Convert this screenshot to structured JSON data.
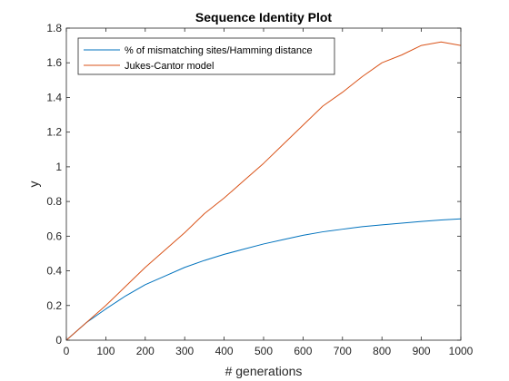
{
  "chart_data": {
    "type": "line",
    "title": "Sequence Identity Plot",
    "xlabel": "# generations",
    "ylabel": "y",
    "xlim": [
      0,
      1000
    ],
    "ylim": [
      0,
      1.8
    ],
    "xticks": [
      "0",
      "100",
      "200",
      "300",
      "400",
      "500",
      "600",
      "700",
      "800",
      "900",
      "1000"
    ],
    "yticks": [
      "0",
      "0.2",
      "0.4",
      "0.6",
      "0.8",
      "1",
      "1.2",
      "1.4",
      "1.6",
      "1.8"
    ],
    "grid": false,
    "legend_position": "top-left",
    "x": [
      0,
      50,
      100,
      150,
      200,
      250,
      300,
      350,
      400,
      450,
      500,
      550,
      600,
      650,
      700,
      750,
      800,
      850,
      900,
      950,
      1000
    ],
    "series": [
      {
        "name": "% of mismatching sites/Hamming distance",
        "color": "#0072BD",
        "values": [
          0,
          0.1,
          0.18,
          0.255,
          0.32,
          0.37,
          0.42,
          0.46,
          0.495,
          0.525,
          0.555,
          0.58,
          0.605,
          0.625,
          0.64,
          0.655,
          0.665,
          0.675,
          0.685,
          0.693,
          0.7
        ]
      },
      {
        "name": "Jukes-Cantor model",
        "color": "#D95319",
        "values": [
          0,
          0.1,
          0.2,
          0.31,
          0.42,
          0.52,
          0.62,
          0.73,
          0.82,
          0.92,
          1.02,
          1.13,
          1.24,
          1.35,
          1.43,
          1.52,
          1.6,
          1.645,
          1.7,
          1.72,
          1.7
        ]
      }
    ]
  }
}
